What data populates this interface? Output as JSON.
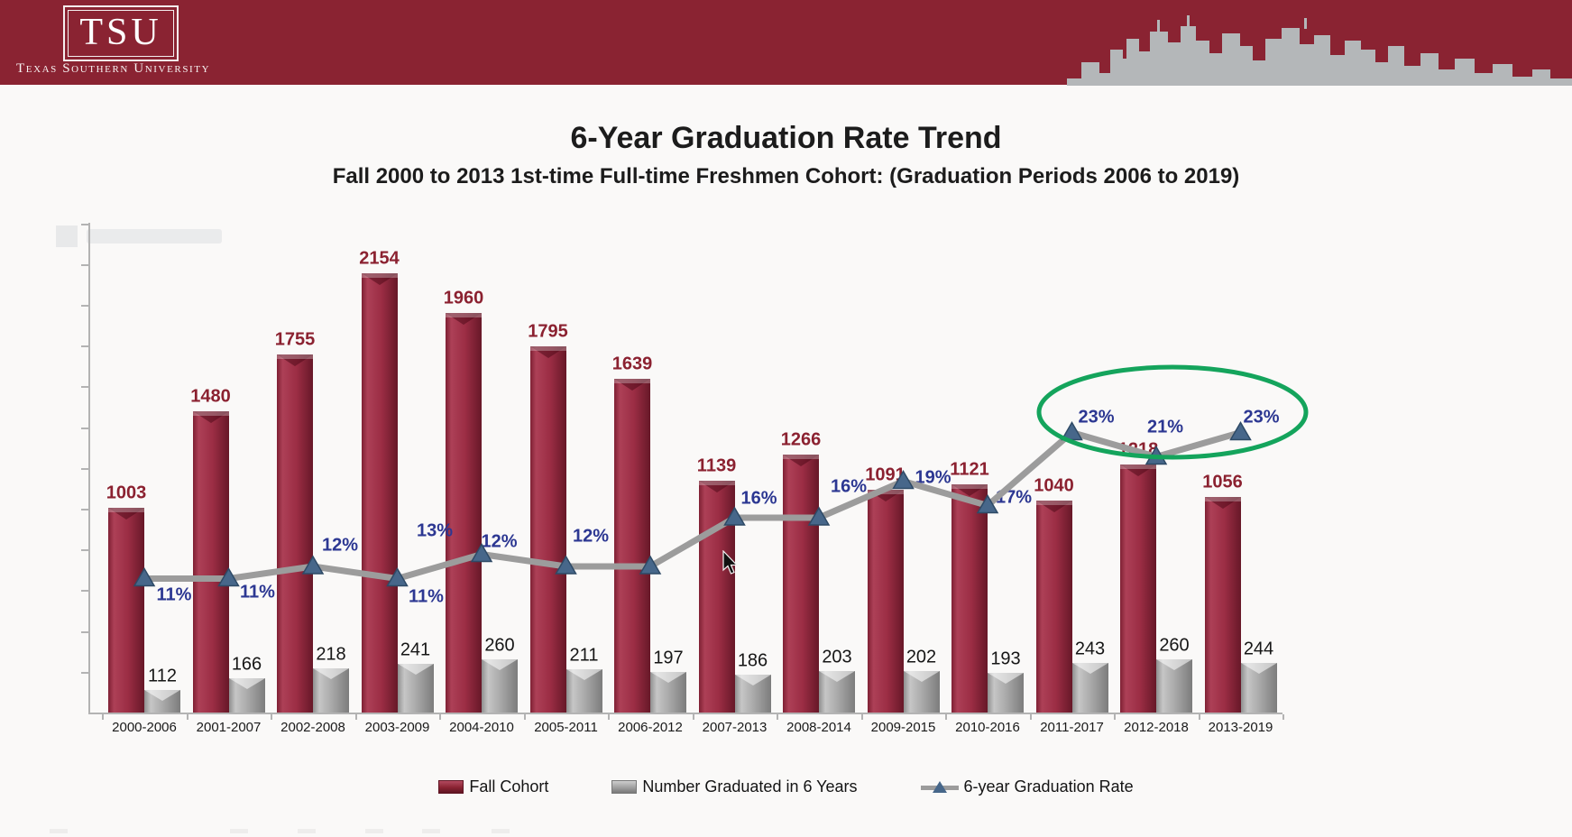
{
  "header": {
    "logo_acronym": "TSU",
    "university_name": "Texas Southern University"
  },
  "title": "6-Year Graduation Rate Trend",
  "subtitle": "Fall 2000 to 2013 1st-time Full-time Freshmen Cohort: (Graduation Periods 2006 to 2019)",
  "legend": [
    {
      "label": "Fall Cohort",
      "swatch": "sw-maroon"
    },
    {
      "label": "Number Graduated in 6 Years",
      "swatch": "sw-gray"
    },
    {
      "label": "6-year Graduation Rate",
      "swatch": "sw-line"
    }
  ],
  "colors": {
    "banner_maroon": "#8a2332",
    "bar_maroon": "#9b2d44",
    "bar_maroon_label": "#8b2130",
    "bar_gray": "#a6a6a6",
    "rate_line_gray": "#9c9c9c",
    "rate_marker_blue": "#47678a",
    "rate_label_blue": "#2c3792",
    "highlight_green": "#14a45c",
    "skyline_gray": "#b4b7b9"
  },
  "chart_data": {
    "type": "bar",
    "subtype": "combo-bar-line",
    "categories": [
      "2000-2006",
      "2001-2007",
      "2002-2008",
      "2003-2009",
      "2004-2010",
      "2005-2011",
      "2006-2012",
      "2007-2013",
      "2008-2014",
      "2009-2015",
      "2010-2016",
      "2011-2017",
      "2012-2018",
      "2013-2019"
    ],
    "series": [
      {
        "name": "Fall Cohort",
        "type": "bar",
        "color": "#9b2d44",
        "values": [
          1003,
          1480,
          1755,
          2154,
          1960,
          1795,
          1639,
          1139,
          1266,
          1091,
          1121,
          1040,
          1218,
          1056
        ]
      },
      {
        "name": "Number Graduated in 6 Years",
        "type": "bar",
        "color": "#a6a6a6",
        "values": [
          112,
          166,
          218,
          241,
          260,
          211,
          197,
          186,
          203,
          202,
          193,
          243,
          260,
          244
        ]
      },
      {
        "name": "6-year Graduation Rate",
        "type": "line",
        "marker": "triangle",
        "color": "#9c9c9c",
        "values_pct": [
          11,
          11,
          12,
          11,
          13,
          12,
          12,
          16,
          16,
          19,
          17,
          23,
          21,
          23
        ]
      }
    ],
    "title": "6-Year Graduation Rate Trend",
    "xlabel": "",
    "ylabel": "",
    "axes": {
      "y_left_labels_shown": false,
      "y_ticks_every_units": 200,
      "y_max_units": 2400,
      "grid": false,
      "legend_position": "bottom"
    },
    "annotations": {
      "highlight_ellipse": {
        "color": "#14a45c",
        "around_points": [
          "2011-2017",
          "2012-2018",
          "2013-2019"
        ],
        "around_rates_pct": [
          23,
          21,
          23
        ]
      }
    }
  }
}
